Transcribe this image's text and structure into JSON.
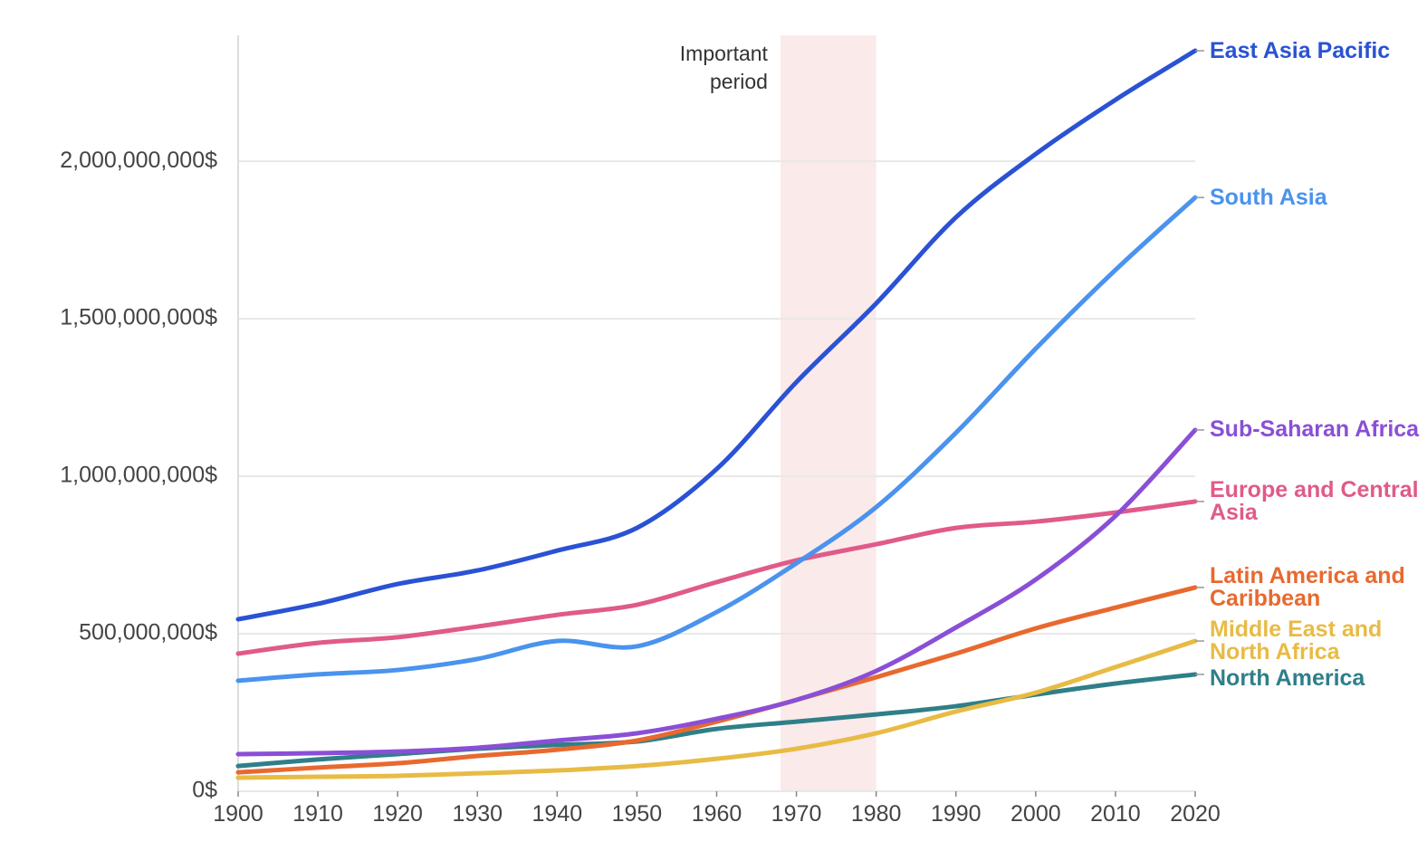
{
  "chart_data": {
    "type": "line",
    "xlim": [
      1900,
      2020
    ],
    "xticks": [
      1900,
      1910,
      1920,
      1930,
      1940,
      1950,
      1960,
      1970,
      1980,
      1990,
      2000,
      2010,
      2020
    ],
    "ylim": [
      0,
      2400000000
    ],
    "yticks": [
      {
        "value": 0,
        "label": "0$"
      },
      {
        "value": 500000000,
        "label": "500,000,000$"
      },
      {
        "value": 1000000000,
        "label": "1,000,000,000$"
      },
      {
        "value": 1500000000,
        "label": "1,500,000,000$"
      },
      {
        "value": 2000000000,
        "label": "2,000,000,000$"
      }
    ],
    "grid": true,
    "highlight": {
      "start": 1968,
      "end": 1980,
      "label": "Important period"
    },
    "x": [
      1900,
      1910,
      1920,
      1930,
      1940,
      1950,
      1960,
      1970,
      1980,
      1990,
      2000,
      2010,
      2020
    ],
    "series": [
      {
        "name": "East Asia Pacific",
        "color": "#2a52d4",
        "values": [
          546000000,
          595000000,
          658000000,
          701000000,
          764000000,
          836000000,
          1023000000,
          1299000000,
          1549000000,
          1822000000,
          2023000000,
          2195000000,
          2351000000
        ]
      },
      {
        "name": "South Asia",
        "color": "#4a93ee",
        "values": [
          351000000,
          371000000,
          385000000,
          420000000,
          477000000,
          460000000,
          569000000,
          724000000,
          902000000,
          1138000000,
          1405000000,
          1655000000,
          1885000000
        ]
      },
      {
        "name": "Sub-Saharan Africa",
        "color": "#8a4fd6",
        "values": [
          118000000,
          121000000,
          126000000,
          138000000,
          161000000,
          184000000,
          230000000,
          290000000,
          382000000,
          520000000,
          672000000,
          874000000,
          1147000000
        ]
      },
      {
        "name": "Europe and Central Asia",
        "color": "#e05a8a",
        "values": [
          437000000,
          471000000,
          489000000,
          523000000,
          560000000,
          592000000,
          664000000,
          733000000,
          784000000,
          836000000,
          856000000,
          885000000,
          920000000
        ]
      },
      {
        "name": "Latin America and Caribbean",
        "color": "#e8692f",
        "values": [
          60000000,
          75000000,
          89000000,
          112000000,
          132000000,
          161000000,
          221000000,
          290000000,
          362000000,
          437000000,
          517000000,
          583000000,
          647000000
        ]
      },
      {
        "name": "Middle East and North Africa",
        "color": "#e8bb45",
        "values": [
          43000000,
          46000000,
          49000000,
          57000000,
          66000000,
          80000000,
          103000000,
          135000000,
          184000000,
          253000000,
          313000000,
          394000000,
          477000000
        ]
      },
      {
        "name": "North America",
        "color": "#2f7f88",
        "values": [
          80000000,
          101000000,
          118000000,
          135000000,
          147000000,
          158000000,
          198000000,
          221000000,
          244000000,
          270000000,
          307000000,
          342000000,
          371000000
        ]
      }
    ]
  }
}
